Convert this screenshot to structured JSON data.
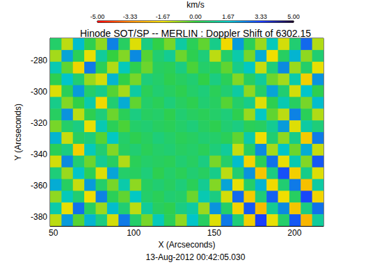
{
  "chart_data": {
    "type": "heatmap",
    "title": "Hinode SOT/SP -- MERLIN : Doppler Shift of 6302.15",
    "x_label": "X (Arcseconds)",
    "y_label": "Y (Arcseconds)",
    "annotation": "13-Aug-2012 00:42:05.030",
    "xlim": [
      48,
      218
    ],
    "ylim": [
      -386,
      -266
    ],
    "xticks": [
      50,
      100,
      150,
      200
    ],
    "yticks": [
      -380,
      -360,
      -340,
      -320,
      -300,
      -280
    ],
    "cells": [
      [
        0.5,
        -1.2,
        1.8,
        0.2,
        -0.8,
        2.5,
        0.4,
        -1.5,
        0.8,
        0.1,
        -0.6,
        1.2,
        0.3,
        -0.4,
        0.9,
        -1.8,
        2.2,
        0.3,
        -0.9,
        1.5,
        -1.4,
        0.6,
        2.8,
        -1.1
      ],
      [
        -1.0,
        2.1,
        0.3,
        -1.6,
        1.1,
        0.0,
        -0.7,
        2.4,
        -0.3,
        0.6,
        1.0,
        -0.5,
        0.2,
        0.7,
        -1.2,
        0.5,
        1.3,
        -0.6,
        2.0,
        -1.7,
        0.4,
        1.9,
        -0.8,
        0.6
      ],
      [
        1.4,
        -0.4,
        -1.9,
        2.6,
        0.3,
        -1.1,
        1.5,
        0.2,
        -0.5,
        0.4,
        0.3,
        0.8,
        -0.2,
        0.5,
        0.3,
        -0.4,
        0.9,
        1.6,
        -1.3,
        0.7,
        2.4,
        -0.9,
        0.5,
        -1.6
      ],
      [
        0.2,
        1.7,
        0.6,
        -0.9,
        -1.4,
        1.9,
        0.1,
        -0.6,
        0.7,
        0.5,
        0.2,
        0.4,
        0.6,
        0.1,
        0.8,
        0.3,
        -0.7,
        0.4,
        1.1,
        -0.5,
        -1.0,
        1.3,
        -2.0,
        2.3
      ],
      [
        -1.5,
        0.3,
        2.2,
        0.5,
        0.9,
        -0.3,
        -1.0,
        1.2,
        0.3,
        0.6,
        0.4,
        0.2,
        0.5,
        0.7,
        0.3,
        0.6,
        1.2,
        -0.8,
        0.5,
        2.1,
        0.6,
        -1.4,
        1.7,
        0.2
      ],
      [
        0.9,
        -0.7,
        0.1,
        1.3,
        -1.8,
        0.6,
        2.0,
        -0.4,
        0.5,
        0.3,
        0.7,
        0.4,
        0.2,
        0.6,
        0.4,
        -0.3,
        0.5,
        0.9,
        -1.5,
        0.2,
        1.4,
        0.4,
        -0.6,
        1.8
      ],
      [
        0.4,
        2.3,
        -1.2,
        0.2,
        0.7,
        -0.5,
        0.3,
        0.8,
        0.4,
        0.5,
        0.2,
        0.6,
        0.4,
        0.3,
        0.5,
        0.7,
        0.2,
        -0.9,
        1.6,
        -0.4,
        -1.2,
        2.5,
        0.3,
        -1.1
      ],
      [
        -0.6,
        0.5,
        0.8,
        -1.6,
        1.4,
        0.3,
        -0.2,
        0.5,
        0.6,
        0.4,
        0.3,
        0.5,
        0.7,
        0.4,
        0.2,
        0.6,
        0.8,
        0.3,
        0.4,
        1.0,
        2.2,
        -1.5,
        1.2,
        0.7
      ],
      [
        1.9,
        -1.3,
        0.4,
        0.7,
        -0.3,
        1.6,
        0.5,
        0.2,
        0.4,
        0.7,
        0.5,
        0.3,
        0.4,
        0.6,
        0.5,
        0.3,
        -0.4,
        1.3,
        -1.7,
        0.6,
        -0.8,
        0.9,
        -2.1,
        2.6
      ],
      [
        0.3,
        0.8,
        -2.0,
        1.5,
        0.6,
        -0.7,
        0.4,
        0.6,
        0.3,
        0.5,
        0.6,
        0.4,
        0.5,
        0.3,
        0.7,
        1.1,
        -1.3,
        0.4,
        2.4,
        -1.0,
        1.7,
        -0.5,
        2.0,
        -1.3
      ],
      [
        -1.4,
        2.4,
        0.6,
        -0.5,
        1.0,
        0.4,
        -1.1,
        0.3,
        0.5,
        0.4,
        0.3,
        0.6,
        0.4,
        0.8,
        -0.6,
        0.5,
        1.8,
        -1.9,
        0.3,
        2.7,
        -1.6,
        1.4,
        -0.7,
        3.0
      ],
      [
        0.7,
        -0.9,
        1.7,
        0.3,
        -1.5,
        2.1,
        0.5,
        0.4,
        0.7,
        0.2,
        0.5,
        0.3,
        0.6,
        0.4,
        0.9,
        -1.2,
        0.6,
        2.3,
        -2.2,
        0.8,
        3.1,
        -2.0,
        0.9,
        -1.5
      ],
      [
        2.0,
        0.4,
        -1.3,
        2.2,
        0.5,
        -0.6,
        1.3,
        -0.8,
        0.4,
        0.6,
        0.4,
        0.7,
        0.3,
        1.0,
        -0.7,
        2.1,
        -1.6,
        0.5,
        1.9,
        -1.8,
        0.6,
        2.6,
        -2.3,
        1.2
      ],
      [
        -0.8,
        1.5,
        0.6,
        -1.7,
        2.5,
        0.3,
        -0.4,
        1.6,
        0.5,
        0.3,
        0.6,
        0.5,
        -0.5,
        1.4,
        0.8,
        -1.4,
        2.8,
        -2.1,
        0.7,
        2.9,
        -1.7,
        0.4,
        3.2,
        -1.9
      ],
      [
        1.3,
        -1.6,
        2.7,
        0.4,
        -0.9,
        1.8,
        0.6,
        -1.2,
        1.1,
        0.4,
        0.2,
        0.8,
        1.2,
        -0.9,
        2.3,
        0.5,
        -1.9,
        3.0,
        -2.4,
        1.0,
        2.4,
        -2.2,
        0.8,
        2.7
      ],
      [
        -1.2,
        2.2,
        -0.3,
        1.9,
        0.8,
        -1.4,
        2.6,
        0.5,
        -0.6,
        1.5,
        0.3,
        -0.8,
        1.7,
        0.4,
        -1.5,
        2.6,
        0.7,
        -2.0,
        3.3,
        -1.6,
        0.5,
        3.0,
        -2.5,
        1.1
      ]
    ],
    "colorbar": {
      "label": "km/s",
      "range": [
        -5,
        5
      ],
      "ticks": [
        {
          "value": -5,
          "label": "-5.00"
        },
        {
          "value": -3.33,
          "label": "-3.33"
        },
        {
          "value": -1.67,
          "label": "-1.67"
        },
        {
          "value": 0,
          "label": "0.00"
        },
        {
          "value": 1.67,
          "label": "1.67"
        },
        {
          "value": 3.33,
          "label": "3.33"
        },
        {
          "value": 5,
          "label": "5.00"
        }
      ],
      "colors": [
        "#ff0000",
        "#ff8c00",
        "#f0e000",
        "#33d040",
        "#00c8c8",
        "#1a3cff",
        "#1a0028"
      ]
    }
  }
}
